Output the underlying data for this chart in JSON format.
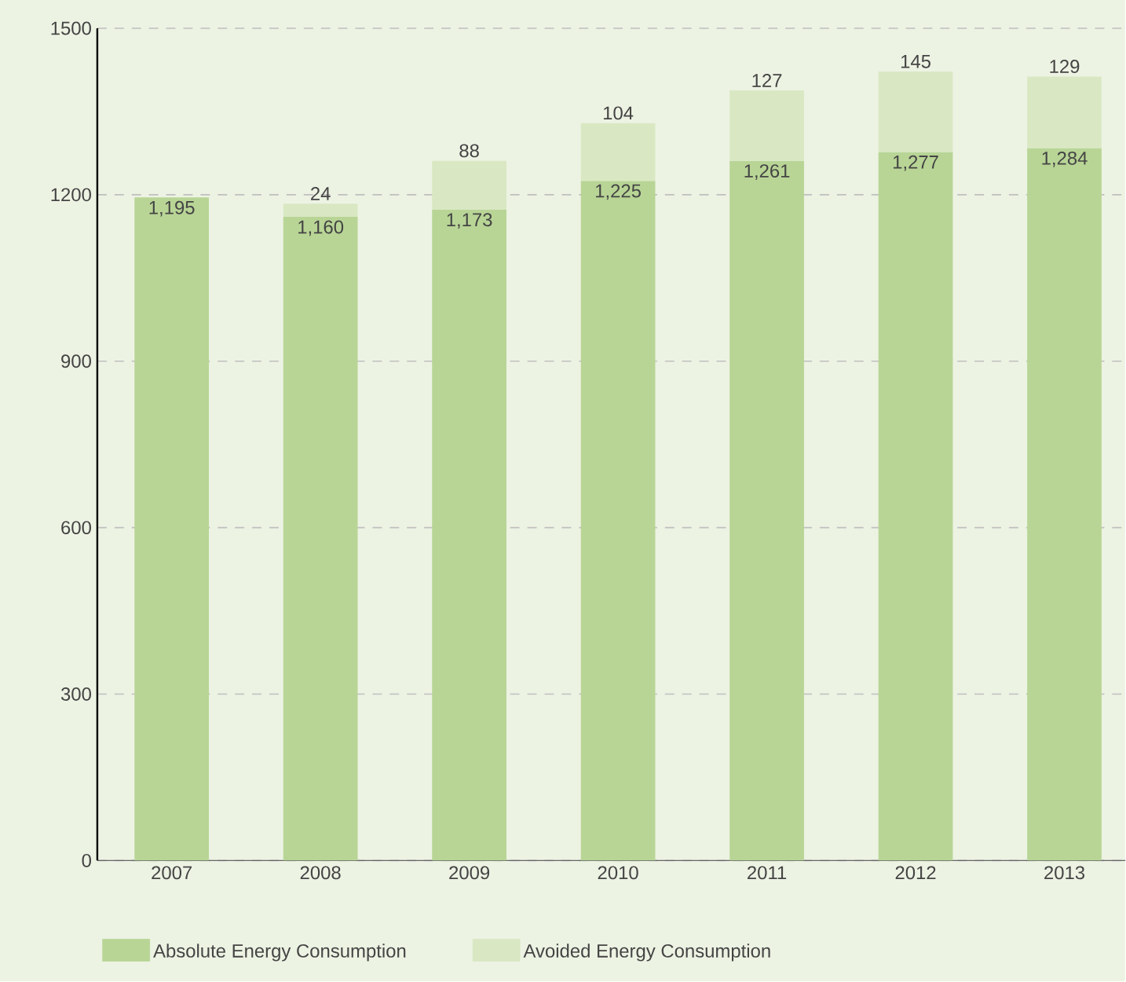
{
  "chart_data": {
    "type": "bar",
    "stacked": true,
    "categories": [
      "2007",
      "2008",
      "2009",
      "2010",
      "2011",
      "2012",
      "2013"
    ],
    "series": [
      {
        "name": "Absolute Energy Consumption",
        "color": "#b8d596",
        "values": [
          1195,
          1160,
          1173,
          1225,
          1261,
          1277,
          1284
        ],
        "value_labels": [
          "1,195",
          "1,160",
          "1,173",
          "1,225",
          "1,261",
          "1,277",
          "1,284"
        ]
      },
      {
        "name": "Avoided Energy Consumption",
        "color": "#d9e8c3",
        "values": [
          null,
          24,
          88,
          104,
          127,
          145,
          129
        ],
        "value_labels": [
          null,
          "24",
          "88",
          "104",
          "127",
          "145",
          "129"
        ]
      }
    ],
    "ylim": [
      0,
      1500
    ],
    "yticks": [
      0,
      300,
      600,
      900,
      1200,
      1500
    ],
    "grid": "y",
    "legend": "bottom"
  }
}
